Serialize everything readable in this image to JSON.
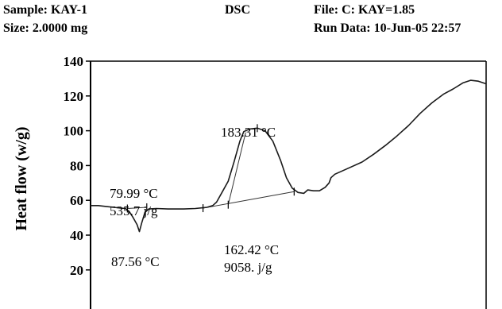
{
  "header": {
    "sample": "Sample: KAY-1",
    "size": "Size: 2.0000 mg",
    "method": "DSC",
    "file": "File: C: KAY=1.85",
    "run_data": "Run Data: 10-Jun-05 22:57"
  },
  "chart_data": {
    "type": "line",
    "title": "",
    "xlabel": "",
    "ylabel": "Heat flow (w/g)",
    "ylim": [
      0,
      140
    ],
    "yticks": [
      20,
      40,
      60,
      80,
      100,
      120,
      140
    ],
    "grid": false,
    "series": [
      {
        "name": "",
        "values": [
          [
            0.0,
            57.0
          ],
          [
            2.0,
            57.0
          ],
          [
            4.0,
            56.5
          ],
          [
            6.0,
            56.0
          ],
          [
            8.0,
            55.5
          ],
          [
            9.0,
            55.3
          ],
          [
            10.0,
            53.5
          ],
          [
            11.0,
            50.0
          ],
          [
            12.0,
            46.0
          ],
          [
            12.6,
            42.0
          ],
          [
            13.2,
            47.0
          ],
          [
            14.0,
            53.0
          ],
          [
            15.0,
            55.0
          ],
          [
            17.0,
            55.3
          ],
          [
            20.0,
            55.0
          ],
          [
            24.0,
            55.0
          ],
          [
            27.0,
            55.3
          ],
          [
            30.0,
            56.0
          ],
          [
            31.5,
            57.0
          ],
          [
            32.5,
            59.0
          ],
          [
            34.0,
            65.0
          ],
          [
            35.5,
            71.0
          ],
          [
            37.0,
            82.0
          ],
          [
            38.5,
            94.0
          ],
          [
            39.5,
            99.5
          ],
          [
            41.0,
            101.0
          ],
          [
            43.0,
            101.5
          ],
          [
            45.0,
            100.0
          ],
          [
            47.0,
            94.0
          ],
          [
            49.0,
            83.0
          ],
          [
            50.5,
            73.0
          ],
          [
            52.0,
            67.0
          ],
          [
            53.5,
            64.5
          ],
          [
            55.0,
            64.0
          ],
          [
            56.0,
            66.0
          ],
          [
            57.5,
            65.5
          ],
          [
            59.0,
            65.5
          ],
          [
            60.5,
            67.5
          ],
          [
            61.5,
            70.0
          ],
          [
            62.0,
            73.0
          ],
          [
            63.0,
            75.0
          ],
          [
            66.0,
            78.0
          ],
          [
            70.0,
            82.0
          ],
          [
            73.0,
            86.5
          ],
          [
            76.0,
            91.5
          ],
          [
            79.0,
            97.0
          ],
          [
            82.0,
            103.0
          ],
          [
            85.0,
            110.0
          ],
          [
            88.0,
            116.0
          ],
          [
            91.0,
            121.0
          ],
          [
            93.5,
            124.0
          ],
          [
            96.0,
            127.5
          ],
          [
            98.0,
            129.0
          ],
          [
            100.0,
            128.5
          ],
          [
            102.0,
            127.0
          ]
        ]
      }
    ],
    "baselines": [
      [
        [
          9.5,
          55.3
        ],
        [
          14.5,
          56.0
        ]
      ],
      [
        [
          29.0,
          55.5
        ],
        [
          52.5,
          65.0
        ]
      ]
    ],
    "tangent_line": [
      [
        35.5,
        57.5
      ],
      [
        40.0,
        99.0
      ]
    ],
    "markers": [
      [
        9.5,
        55.3
      ],
      [
        14.5,
        56.0
      ],
      [
        29.0,
        55.5
      ],
      [
        35.5,
        57.5
      ],
      [
        43.0,
        101.5
      ],
      [
        52.5,
        65.0
      ]
    ],
    "annotations": [
      {
        "lines": [
          "79.99 °C",
          "535.7 j/g"
        ]
      },
      {
        "lines": [
          "87.56 °C"
        ]
      },
      {
        "lines": [
          "183.31 °C"
        ]
      },
      {
        "lines": [
          "162.42 °C",
          "9058. j/g"
        ]
      }
    ]
  }
}
